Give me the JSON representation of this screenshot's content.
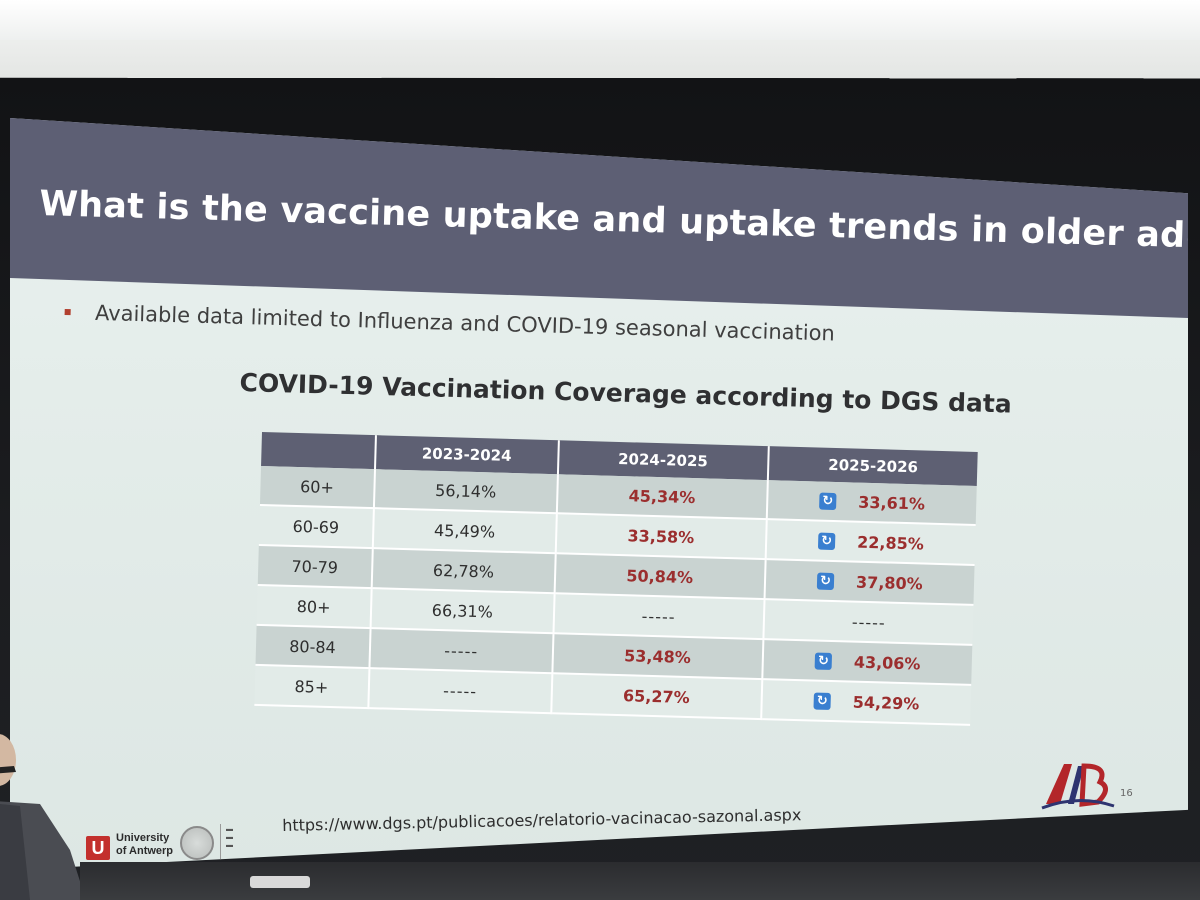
{
  "slide": {
    "title": "What is the vaccine uptake and uptake trends in older adults?",
    "bullet": "Available data limited to Influenza and COVID-19 seasonal vaccination",
    "table_heading": "COVID-19 Vaccination Coverage according to DGS data",
    "source_url": "https://www.dgs.pt/publicacoes/relatorio-vacinacao-sazonal.aspx",
    "slide_number": "16",
    "logos": {
      "university_line1": "University",
      "university_line2": "of Antwerp",
      "aib_mark": "AIB"
    }
  },
  "table": {
    "headers": [
      "",
      "2023-2024",
      "2024-2025",
      "2025-2026"
    ],
    "rows": [
      {
        "age": "60+",
        "y2324": "56,14%",
        "y2425": "45,34%",
        "y2526": "33,61%",
        "icon": "refresh-icon"
      },
      {
        "age": "60-69",
        "y2324": "45,49%",
        "y2425": "33,58%",
        "y2526": "22,85%",
        "icon": "refresh-icon"
      },
      {
        "age": "70-79",
        "y2324": "62,78%",
        "y2425": "50,84%",
        "y2526": "37,80%",
        "icon": "refresh-icon"
      },
      {
        "age": "80+",
        "y2324": "66,31%",
        "y2425": "-----",
        "y2526": "-----",
        "icon": ""
      },
      {
        "age": "80-84",
        "y2324": "-----",
        "y2425": "53,48%",
        "y2526": "43,06%",
        "icon": "refresh-icon"
      },
      {
        "age": "85+",
        "y2324": "-----",
        "y2425": "65,27%",
        "y2526": "54,29%",
        "icon": "refresh-icon"
      }
    ]
  },
  "colors": {
    "title_band": "#5d5f74",
    "header_row": "#5e6073",
    "highlight_value": "#9b2e2e",
    "bullet_marker": "#b2402f",
    "refresh_icon": "#3a7fd0"
  }
}
